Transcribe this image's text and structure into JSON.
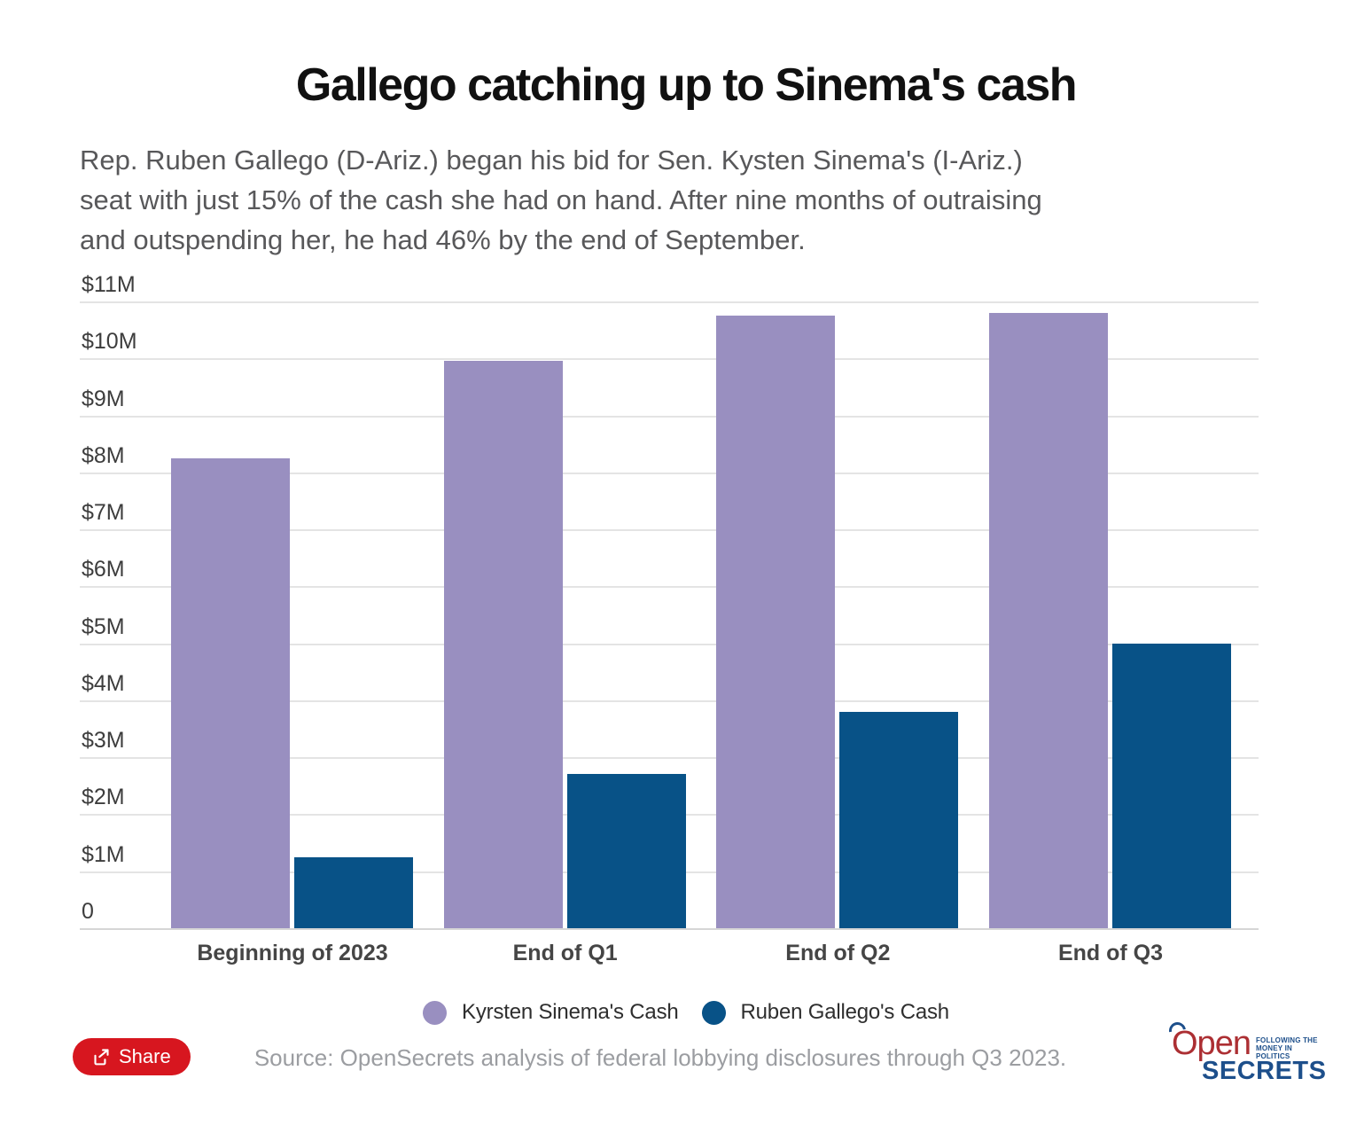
{
  "header": {
    "title": "Gallego catching up to Sinema's cash",
    "subtitle": "Rep. Ruben Gallego (D-Ariz.) began his bid for Sen. Kysten Sinema's (I-Ariz.) seat with just 15% of the cash she had on hand. After nine months of outraising and outspending her, he had 46% by the end of September.",
    "subtitle_lines": [
      "Rep. Ruben Gallego (D-Ariz.) began his bid for Sen. Kysten Sinema's (I-Ariz.)",
      "seat with just 15% of the cash she had on hand. After nine months of outraising",
      "and outspending her, he had 46% by the end of September."
    ]
  },
  "chart_data": {
    "type": "bar",
    "title": "Gallego catching up to Sinema's cash",
    "categories": [
      "Beginning of 2023",
      "End of Q1",
      "End of Q2",
      "End of Q3"
    ],
    "series": [
      {
        "name": "Kyrsten Sinema's Cash",
        "color": "#998FC0",
        "values": [
          8.25,
          9.95,
          10.75,
          10.8
        ]
      },
      {
        "name": "Ruben Gallego's Cash",
        "color": "#085287",
        "values": [
          1.25,
          2.7,
          3.8,
          5.0
        ]
      }
    ],
    "units": "millions of USD",
    "ylim": [
      0,
      11
    ],
    "y_tick_values": [
      11,
      10,
      9,
      8,
      7,
      6,
      5,
      4,
      3,
      2,
      1,
      0
    ],
    "y_ticks": [
      "$11M",
      "$10M",
      "$9M",
      "$8M",
      "$7M",
      "$6M",
      "$5M",
      "$4M",
      "$3M",
      "$2M",
      "$1M",
      "0"
    ],
    "grid": true,
    "legend_position": "bottom"
  },
  "legend": {
    "items": [
      {
        "label": "Kyrsten Sinema's Cash",
        "color": "#998FC0"
      },
      {
        "label": "Ruben Gallego's Cash",
        "color": "#085287"
      }
    ]
  },
  "footer": {
    "share_label": "Share",
    "source": "Source: OpenSecrets analysis of federal lobbying disclosures through Q3 2023.",
    "logo": {
      "open": "Open",
      "secrets": "SECRETS",
      "tagline_line1": "FOLLOWING THE",
      "tagline_line2": "MONEY IN POLITICS"
    }
  },
  "colors": {
    "sinema_purple": "#998FC0",
    "gallego_blue": "#085287",
    "grid": "#E4E4E4",
    "axis_baseline": "#D6D6D6",
    "title_text": "#111111",
    "subtitle_text": "#58585A",
    "tick_text": "#3D3D3D",
    "source_text": "#9B9DA1",
    "share_red": "#D7161F",
    "logo_red": "#AC2F33",
    "logo_blue": "#1D4F8B"
  }
}
